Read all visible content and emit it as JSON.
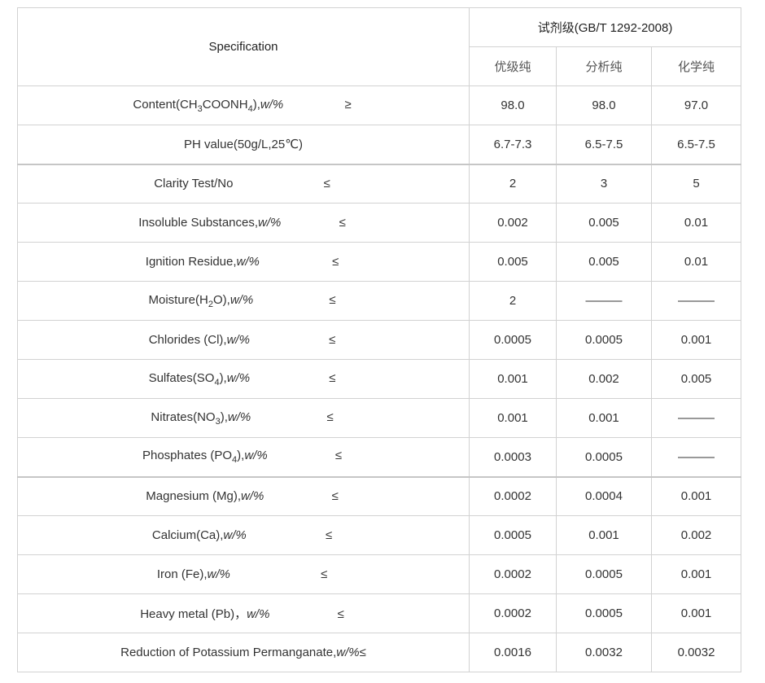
{
  "header": {
    "spec_label": "Specification",
    "grade_label": "试剂级(GB/T 1292-2008)",
    "grades": [
      "优级纯",
      "分析纯",
      "化学纯"
    ]
  },
  "rows": [
    {
      "name": "Content(CH3COONH4),w/%",
      "rel": "≥",
      "values": [
        "98.0",
        "98.0",
        "97.0"
      ]
    },
    {
      "name": "PH value(50g/L,25℃)",
      "rel": "",
      "values": [
        "6.7-7.3",
        "6.5-7.5",
        "6.5-7.5"
      ]
    },
    {
      "name": "Clarity Test/No",
      "rel": "≤",
      "values": [
        "2",
        "3",
        "5"
      ]
    },
    {
      "name": "Insoluble Substances,w/%",
      "rel": "≤",
      "values": [
        "0.002",
        "0.005",
        "0.01"
      ]
    },
    {
      "name": "Ignition Residue,w/%",
      "rel": "≤",
      "values": [
        "0.005",
        "0.005",
        "0.01"
      ]
    },
    {
      "name": "Moisture(H2O),w/%",
      "rel": "≤",
      "values": [
        "2",
        "———",
        "———"
      ]
    },
    {
      "name": "Chlorides (Cl),w/%",
      "rel": "≤",
      "values": [
        "0.0005",
        "0.0005",
        "0.001"
      ]
    },
    {
      "name": "Sulfates(SO4),w/%",
      "rel": "≤",
      "values": [
        "0.001",
        "0.002",
        "0.005"
      ]
    },
    {
      "name": "Nitrates(NO3),w/%",
      "rel": "≤",
      "values": [
        "0.001",
        "0.001",
        "———"
      ]
    },
    {
      "name": "Phosphates (PO4),w/%",
      "rel": "≤",
      "values": [
        "0.0003",
        "0.0005",
        "———"
      ]
    },
    {
      "name": "Magnesium (Mg),w/%",
      "rel": "≤",
      "values": [
        "0.0002",
        "0.0004",
        "0.001"
      ]
    },
    {
      "name": "Calcium(Ca),w/%",
      "rel": "≤",
      "values": [
        "0.0005",
        "0.001",
        "0.002"
      ]
    },
    {
      "name": "Iron (Fe),w/%",
      "rel": "≤",
      "values": [
        "0.0002",
        "0.0005",
        "0.001"
      ]
    },
    {
      "name": "Heavy metal (Pb)，w/%",
      "rel": "≤",
      "values": [
        "0.0002",
        "0.0005",
        "0.001"
      ]
    },
    {
      "name": "Reduction of Potassium Permanganate,w/%≤",
      "rel": "",
      "values": [
        "0.0016",
        "0.0032",
        "0.0032"
      ]
    }
  ]
}
